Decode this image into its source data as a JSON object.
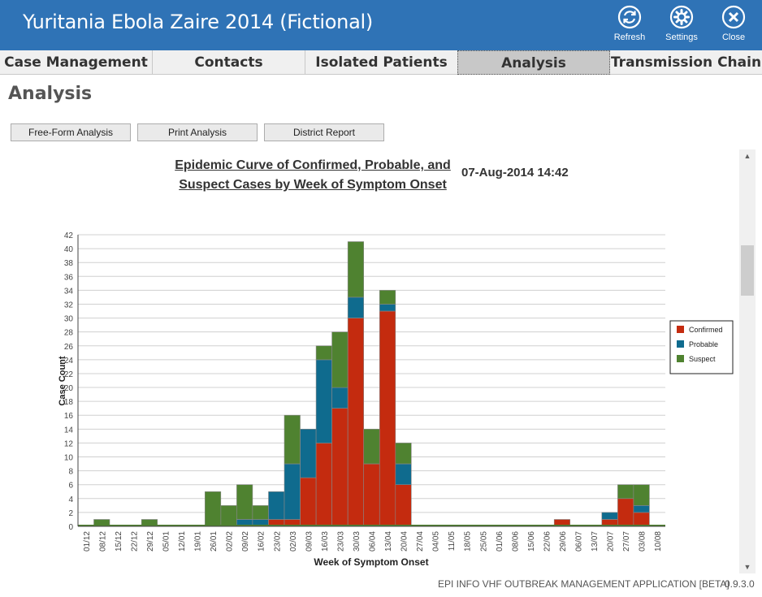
{
  "app": {
    "title": "Yuritania Ebola Zaire 2014 (Fictional)",
    "toolbar": {
      "refresh_label": "Refresh",
      "settings_label": "Settings",
      "close_label": "Close"
    },
    "accent_color": "#2f73b6"
  },
  "tabs": [
    {
      "label": "Case Management"
    },
    {
      "label": "Contacts"
    },
    {
      "label": "Isolated Patients"
    },
    {
      "label": "Analysis",
      "active": true
    },
    {
      "label": "Transmission Chain"
    }
  ],
  "page": {
    "heading": "Analysis",
    "buttons": {
      "free_form": "Free-Form Analysis",
      "print": "Print Analysis",
      "district": "District Report"
    }
  },
  "report": {
    "title_line1": "Epidemic Curve of Confirmed, Probable, and",
    "title_line2": "Suspect Cases by Week of Symptom Onset",
    "timestamp": "07-Aug-2014 14:42"
  },
  "chart_data": {
    "type": "bar",
    "stacked": true,
    "xlabel": "Week of Symptom Onset",
    "ylabel": "Case Count",
    "ylim": [
      0,
      42
    ],
    "yticks": [
      0,
      2,
      4,
      6,
      8,
      10,
      12,
      14,
      16,
      18,
      20,
      22,
      24,
      26,
      28,
      30,
      32,
      34,
      36,
      38,
      40,
      42
    ],
    "grid": true,
    "legend_position": "right",
    "categories": [
      "01/12",
      "08/12",
      "15/12",
      "22/12",
      "29/12",
      "05/01",
      "12/01",
      "19/01",
      "26/01",
      "02/02",
      "09/02",
      "16/02",
      "23/02",
      "02/03",
      "09/03",
      "16/03",
      "23/03",
      "30/03",
      "06/04",
      "13/04",
      "20/04",
      "27/04",
      "04/05",
      "11/05",
      "18/05",
      "25/05",
      "01/06",
      "08/06",
      "15/06",
      "22/06",
      "29/06",
      "06/07",
      "13/07",
      "20/07",
      "27/07",
      "03/08",
      "10/08"
    ],
    "series": [
      {
        "name": "Confirmed",
        "color": "#c42b0f",
        "values": [
          0,
          0,
          0,
          0,
          0,
          0,
          0,
          0,
          0,
          0,
          0,
          0,
          1,
          1,
          7,
          12,
          17,
          30,
          9,
          31,
          6,
          0,
          0,
          0,
          0,
          0,
          0,
          0,
          0,
          0,
          1,
          0,
          0,
          1,
          4,
          2,
          0
        ]
      },
      {
        "name": "Probable",
        "color": "#0f6b8e",
        "values": [
          0,
          0,
          0,
          0,
          0,
          0,
          0,
          0,
          0,
          0,
          1,
          1,
          4,
          8,
          7,
          12,
          3,
          3,
          0,
          1,
          3,
          0,
          0,
          0,
          0,
          0,
          0,
          0,
          0,
          0,
          0,
          0,
          0,
          1,
          0,
          1,
          0
        ]
      },
      {
        "name": "Suspect",
        "color": "#4f8230",
        "values": [
          0,
          1,
          0,
          0,
          1,
          0,
          0,
          0,
          5,
          3,
          5,
          2,
          0,
          7,
          0,
          2,
          8,
          8,
          5,
          2,
          3,
          0,
          0,
          0,
          0,
          0,
          0,
          0,
          0,
          0,
          0,
          0,
          0,
          0,
          2,
          3,
          0
        ]
      }
    ]
  },
  "footer": {
    "app_name": "EPI INFO VHF OUTBREAK MANAGEMENT APPLICATION [BETA]",
    "version": "0.9.3.0"
  }
}
